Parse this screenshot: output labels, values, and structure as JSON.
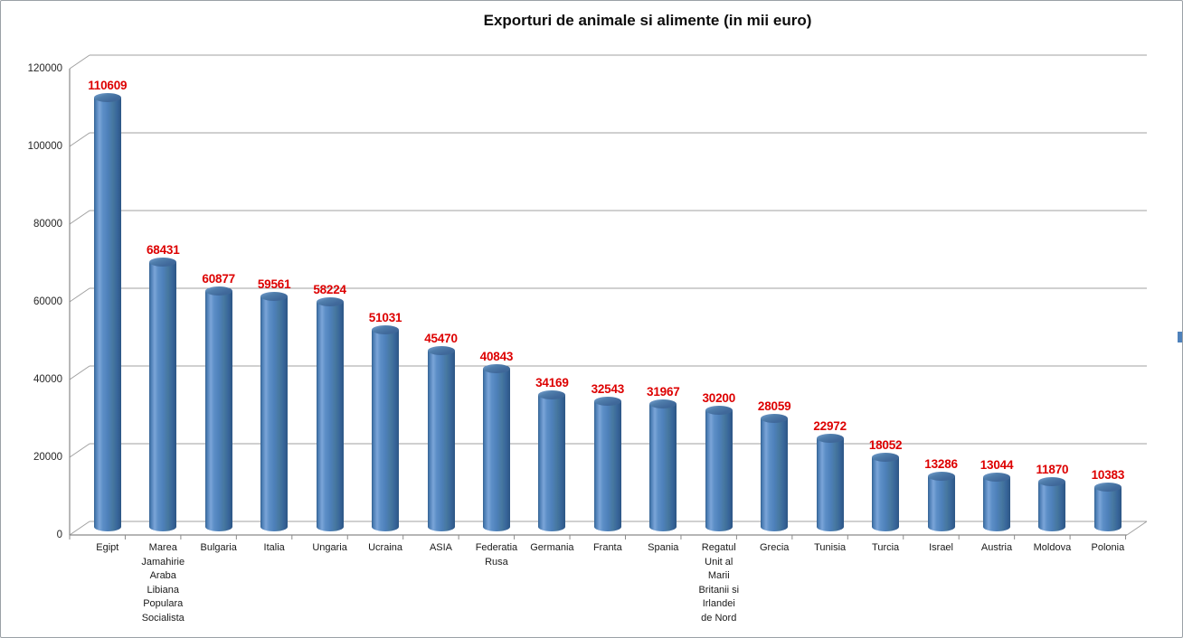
{
  "window": {
    "background": "#ffffff",
    "border_color": "#9aa0a6"
  },
  "chart_data": {
    "type": "bar",
    "style": "3d-cylinder",
    "title": "Exporturi de animale si alimente (in mii euro)",
    "categories": [
      "Egipt",
      "Marea\nJamahirie\nAraba\nLibiana\nPopulara\nSocialista",
      "Bulgaria",
      "Italia",
      "Ungaria",
      "Ucraina",
      "ASIA",
      "Federatia\nRusa",
      "Germania",
      "Franta",
      "Spania",
      "Regatul\nUnit al\nMarii\nBritanii si\nIrlandei\nde Nord",
      "Grecia",
      "Tunisia",
      "Turcia",
      "Israel",
      "Austria",
      "Moldova",
      "Polonia"
    ],
    "values": [
      110609,
      68431,
      60877,
      59561,
      58224,
      51031,
      45470,
      40843,
      34169,
      32543,
      31967,
      30200,
      28059,
      22972,
      18052,
      13286,
      13044,
      11870,
      10383
    ],
    "xlabel": "",
    "ylabel": "",
    "ylim": [
      0,
      120000
    ],
    "ytick_step": 20000,
    "yticks": [
      "0",
      "20000",
      "40000",
      "60000",
      "80000",
      "100000",
      "120000"
    ],
    "grid": true,
    "legend_position": "cut-off-right-edge",
    "value_labels_shown": true,
    "colors": {
      "bar": "#4e81bb",
      "bar_edge_dark": "#2d5685",
      "bar_highlight": "#7ba5d8",
      "bar_top": "#44739f",
      "value_label": "#dd0000",
      "gridline": "#a0a0a0",
      "axis": "#8a8a8a",
      "title": "#0d0d0d",
      "tick_label": "#262626"
    }
  }
}
